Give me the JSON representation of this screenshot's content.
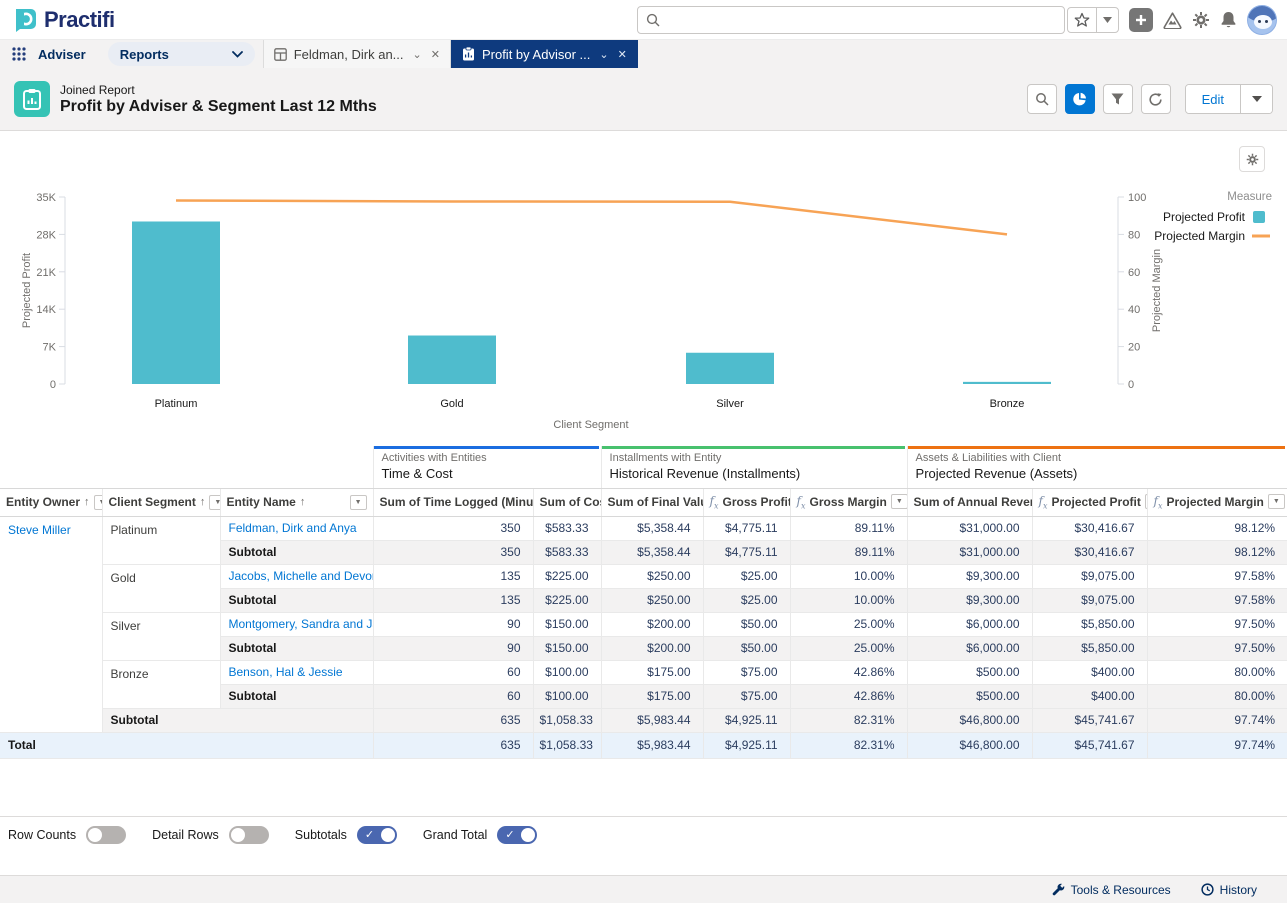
{
  "header": {
    "brand": "Practifi",
    "icons": [
      "search-icon",
      "favorites-star-icon",
      "favorites-caret-icon",
      "add-icon",
      "trailhead-help-icon",
      "setup-gear-icon",
      "notifications-bell-icon",
      "user-avatar"
    ]
  },
  "nav": {
    "app": "Adviser",
    "menu": "Reports",
    "tabs": [
      {
        "label": "Feldman, Dirk an...",
        "active": false
      },
      {
        "label": "Profit by Advisor ...",
        "active": true
      }
    ]
  },
  "report": {
    "kicker": "Joined Report",
    "title": "Profit by Adviser & Segment Last 12 Mths",
    "edit_label": "Edit"
  },
  "chart_data": {
    "type": "bar",
    "subtype": "bar-line-combo",
    "categories": [
      "Platinum",
      "Gold",
      "Silver",
      "Bronze"
    ],
    "series": [
      {
        "name": "Projected Profit",
        "type": "bar",
        "axis": "left",
        "color": "#4fbccd",
        "values": [
          30416.67,
          9075,
          5850,
          400
        ]
      },
      {
        "name": "Projected Margin",
        "type": "line",
        "axis": "right",
        "color": "#f7a355",
        "values": [
          98.12,
          97.58,
          97.5,
          80.0
        ]
      }
    ],
    "xlabel": "Client Segment",
    "left_axis": {
      "label": "Projected Profit",
      "tick_labels": [
        "0",
        "7K",
        "14K",
        "21K",
        "28K",
        "35K"
      ],
      "tick_values": [
        0,
        7000,
        14000,
        21000,
        28000,
        35000
      ],
      "max": 35000
    },
    "right_axis": {
      "label": "Projected Margin",
      "tick_labels": [
        "0",
        "20",
        "40",
        "60",
        "80",
        "100"
      ],
      "tick_values": [
        0,
        20,
        40,
        60,
        80,
        100
      ],
      "max": 100
    },
    "legend": {
      "title": "Measure",
      "position": "top-right",
      "entries": [
        "Projected Profit",
        "Projected Margin"
      ]
    },
    "grid": false
  },
  "table": {
    "groups": [
      {
        "kicker": "Activities with Entities",
        "title": "Time & Cost",
        "color": "#1b6de0",
        "span": 2
      },
      {
        "kicker": "Installments with Entity",
        "title": "Historical Revenue (Installments)",
        "color": "#48c16e",
        "span": 3
      },
      {
        "kicker": "Assets & Liabilities with Client",
        "title": "Projected Revenue (Assets)",
        "color": "#ed7111",
        "span": 3
      }
    ],
    "columns": [
      {
        "label": "Entity Owner",
        "sort": true,
        "filter": true
      },
      {
        "label": "Client Segment",
        "sort": true,
        "filter": true
      },
      {
        "label": "Entity Name",
        "sort": true,
        "filter": true,
        "filter_right": true
      },
      {
        "label": "Sum of Time Logged (Minutes)"
      },
      {
        "label": "Sum of Cost"
      },
      {
        "label": "Sum of Final Value"
      },
      {
        "label": "Gross Profit",
        "fx": true,
        "filter": true
      },
      {
        "label": "Gross Margin",
        "fx": true,
        "filter": true
      },
      {
        "label": "Sum of Annual Revenue"
      },
      {
        "label": "Projected Profit",
        "fx": true,
        "filter": true
      },
      {
        "label": "Projected Margin",
        "fx": true,
        "filter": true
      }
    ],
    "rows": [
      {
        "type": "detail",
        "owner": "Steve Miller",
        "segment": "Platinum",
        "entity": "Feldman, Dirk and Anya",
        "metrics": [
          "350",
          "$583.33",
          "$5,358.44",
          "$4,775.11",
          "89.11%",
          "$31,000.00",
          "$30,416.67",
          "98.12%"
        ]
      },
      {
        "type": "subtotal",
        "label": "Subtotal",
        "metrics": [
          "350",
          "$583.33",
          "$5,358.44",
          "$4,775.11",
          "89.11%",
          "$31,000.00",
          "$30,416.67",
          "98.12%"
        ]
      },
      {
        "type": "detail",
        "segment": "Gold",
        "entity": "Jacobs, Michelle and Devon",
        "metrics": [
          "135",
          "$225.00",
          "$250.00",
          "$25.00",
          "10.00%",
          "$9,300.00",
          "$9,075.00",
          "97.58%"
        ]
      },
      {
        "type": "subtotal",
        "label": "Subtotal",
        "metrics": [
          "135",
          "$225.00",
          "$250.00",
          "$25.00",
          "10.00%",
          "$9,300.00",
          "$9,075.00",
          "97.58%"
        ]
      },
      {
        "type": "detail",
        "segment": "Silver",
        "entity": "Montgomery, Sandra and James",
        "metrics": [
          "90",
          "$150.00",
          "$200.00",
          "$50.00",
          "25.00%",
          "$6,000.00",
          "$5,850.00",
          "97.50%"
        ]
      },
      {
        "type": "subtotal",
        "label": "Subtotal",
        "metrics": [
          "90",
          "$150.00",
          "$200.00",
          "$50.00",
          "25.00%",
          "$6,000.00",
          "$5,850.00",
          "97.50%"
        ]
      },
      {
        "type": "detail",
        "segment": "Bronze",
        "entity": "Benson, Hal & Jessie",
        "metrics": [
          "60",
          "$100.00",
          "$175.00",
          "$75.00",
          "42.86%",
          "$500.00",
          "$400.00",
          "80.00%"
        ]
      },
      {
        "type": "subtotal",
        "label": "Subtotal",
        "metrics": [
          "60",
          "$100.00",
          "$175.00",
          "$75.00",
          "42.86%",
          "$500.00",
          "$400.00",
          "80.00%"
        ]
      },
      {
        "type": "owner-subtotal",
        "label": "Subtotal",
        "metrics": [
          "635",
          "$1,058.33",
          "$5,983.44",
          "$4,925.11",
          "82.31%",
          "$46,800.00",
          "$45,741.67",
          "97.74%"
        ]
      },
      {
        "type": "total",
        "label": "Total",
        "metrics": [
          "635",
          "$1,058.33",
          "$5,983.44",
          "$4,925.11",
          "82.31%",
          "$46,800.00",
          "$45,741.67",
          "97.74%"
        ]
      }
    ]
  },
  "toggles": [
    {
      "label": "Row Counts",
      "on": false
    },
    {
      "label": "Detail Rows",
      "on": false
    },
    {
      "label": "Subtotals",
      "on": true
    },
    {
      "label": "Grand Total",
      "on": true
    }
  ],
  "footer": {
    "tools": "Tools & Resources",
    "history": "History"
  },
  "colors": {
    "accent_teal": "#35c3b5",
    "bar_teal": "#4fbccd",
    "line_orange": "#f7a355",
    "link_blue": "#0176d3",
    "active_tab_navy": "#0e3a7e",
    "toggle_on_blue": "#4a67b0"
  }
}
